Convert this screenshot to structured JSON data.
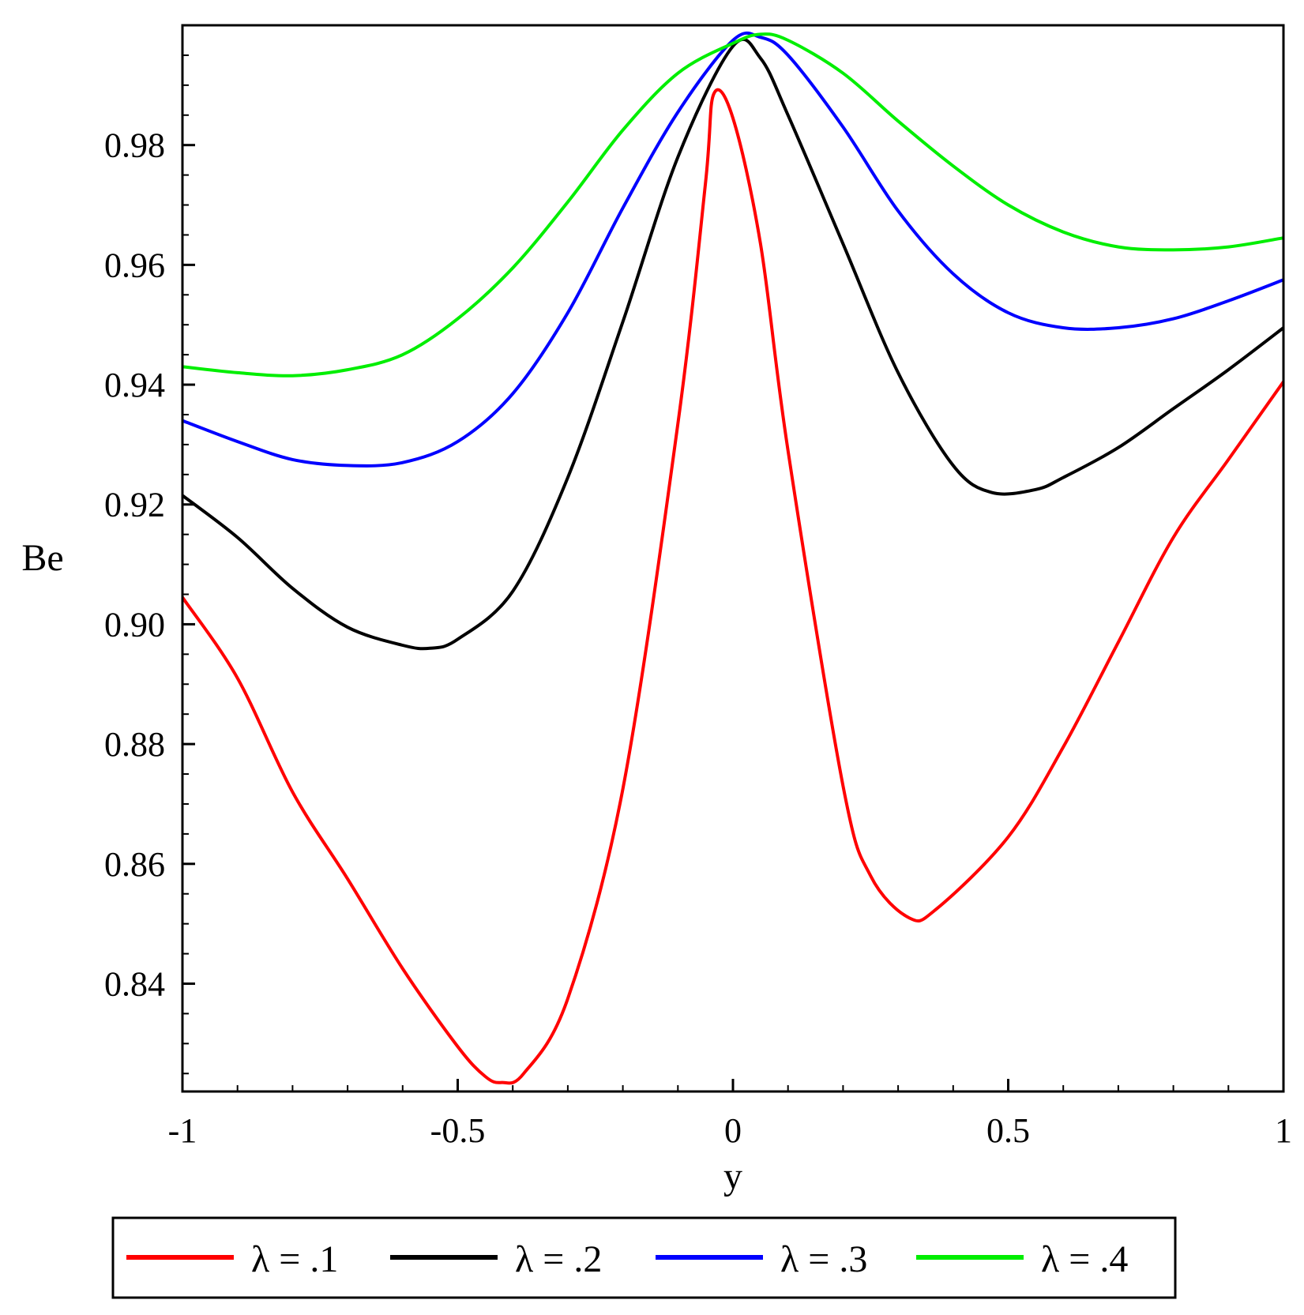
{
  "chart_data": {
    "type": "line",
    "xlabel": "y",
    "ylabel": "Be",
    "xlim": [
      -1,
      1
    ],
    "ylim": [
      0.822,
      1.0
    ],
    "x_ticks": [
      -1,
      -0.5,
      0,
      0.5,
      1
    ],
    "x_tick_labels": [
      "-1",
      "-0.5",
      "0",
      "0.5",
      "1"
    ],
    "y_ticks": [
      0.84,
      0.86,
      0.88,
      0.9,
      0.92,
      0.94,
      0.96,
      0.98
    ],
    "y_tick_labels": [
      "0.84",
      "0.86",
      "0.88",
      "0.90",
      "0.92",
      "0.94",
      "0.96",
      "0.98"
    ],
    "grid": false,
    "legend_position": "bottom",
    "x": [
      -1.0,
      -0.9,
      -0.8,
      -0.7,
      -0.6,
      -0.5,
      -0.4,
      -0.3,
      -0.2,
      -0.1,
      0.0,
      0.1,
      0.2,
      0.3,
      0.4,
      0.5,
      0.6,
      0.7,
      0.8,
      0.9,
      1.0
    ],
    "series": [
      {
        "name": "λ = .1",
        "color": "#ff0000",
        "points": [
          [
            -1.0,
            0.9045
          ],
          [
            -0.9,
            0.891
          ],
          [
            -0.8,
            0.872
          ],
          [
            -0.7,
            0.8575
          ],
          [
            -0.6,
            0.8425
          ],
          [
            -0.5,
            0.8295
          ],
          [
            -0.45,
            0.8245
          ],
          [
            -0.42,
            0.8235
          ],
          [
            -0.38,
            0.825
          ],
          [
            -0.3,
            0.8375
          ],
          [
            -0.2,
            0.8725
          ],
          [
            -0.1,
            0.9335
          ],
          [
            -0.05,
            0.9735
          ],
          [
            -0.035,
            0.9885
          ],
          [
            0.0,
            0.9845
          ],
          [
            0.05,
            0.9635
          ],
          [
            0.1,
            0.929
          ],
          [
            0.2,
            0.873
          ],
          [
            0.25,
            0.858
          ],
          [
            0.32,
            0.851
          ],
          [
            0.37,
            0.8525
          ],
          [
            0.5,
            0.8645
          ],
          [
            0.6,
            0.8795
          ],
          [
            0.7,
            0.897
          ],
          [
            0.8,
            0.9145
          ],
          [
            0.9,
            0.9275
          ],
          [
            1.0,
            0.9405
          ]
        ]
      },
      {
        "name": "λ = .2",
        "color": "#000000",
        "points": [
          [
            -1.0,
            0.9215
          ],
          [
            -0.9,
            0.9145
          ],
          [
            -0.8,
            0.906
          ],
          [
            -0.7,
            0.8995
          ],
          [
            -0.6,
            0.8965
          ],
          [
            -0.55,
            0.896
          ],
          [
            -0.5,
            0.8975
          ],
          [
            -0.4,
            0.9055
          ],
          [
            -0.3,
            0.9245
          ],
          [
            -0.2,
            0.9505
          ],
          [
            -0.1,
            0.978
          ],
          [
            0.0,
            0.9965
          ],
          [
            0.05,
            0.9945
          ],
          [
            0.1,
            0.985
          ],
          [
            0.2,
            0.9635
          ],
          [
            0.3,
            0.942
          ],
          [
            0.4,
            0.9265
          ],
          [
            0.47,
            0.922
          ],
          [
            0.55,
            0.9225
          ],
          [
            0.6,
            0.9245
          ],
          [
            0.7,
            0.9295
          ],
          [
            0.8,
            0.936
          ],
          [
            0.9,
            0.9425
          ],
          [
            1.0,
            0.9495
          ]
        ]
      },
      {
        "name": "λ = .3",
        "color": "#0000ff",
        "points": [
          [
            -1.0,
            0.934
          ],
          [
            -0.9,
            0.9305
          ],
          [
            -0.8,
            0.9275
          ],
          [
            -0.7,
            0.9265
          ],
          [
            -0.6,
            0.927
          ],
          [
            -0.5,
            0.9305
          ],
          [
            -0.4,
            0.9385
          ],
          [
            -0.3,
            0.952
          ],
          [
            -0.2,
            0.9695
          ],
          [
            -0.1,
            0.9855
          ],
          [
            0.0,
            0.9975
          ],
          [
            0.05,
            0.998
          ],
          [
            0.1,
            0.995
          ],
          [
            0.2,
            0.983
          ],
          [
            0.3,
            0.969
          ],
          [
            0.4,
            0.9585
          ],
          [
            0.5,
            0.952
          ],
          [
            0.6,
            0.9495
          ],
          [
            0.7,
            0.9495
          ],
          [
            0.8,
            0.951
          ],
          [
            0.9,
            0.954
          ],
          [
            1.0,
            0.9575
          ]
        ]
      },
      {
        "name": "λ = .4",
        "color": "#00ee00",
        "points": [
          [
            -1.0,
            0.943
          ],
          [
            -0.9,
            0.942
          ],
          [
            -0.8,
            0.9415
          ],
          [
            -0.7,
            0.9425
          ],
          [
            -0.6,
            0.945
          ],
          [
            -0.5,
            0.951
          ],
          [
            -0.4,
            0.9595
          ],
          [
            -0.3,
            0.9705
          ],
          [
            -0.2,
            0.9825
          ],
          [
            -0.1,
            0.992
          ],
          [
            0.0,
            0.997
          ],
          [
            0.05,
            0.9985
          ],
          [
            0.1,
            0.9975
          ],
          [
            0.2,
            0.992
          ],
          [
            0.3,
            0.984
          ],
          [
            0.4,
            0.9765
          ],
          [
            0.5,
            0.97
          ],
          [
            0.6,
            0.9655
          ],
          [
            0.7,
            0.963
          ],
          [
            0.8,
            0.9625
          ],
          [
            0.9,
            0.963
          ],
          [
            1.0,
            0.9645
          ]
        ]
      }
    ]
  }
}
